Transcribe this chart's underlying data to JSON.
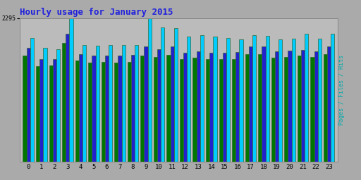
{
  "title": "Hourly usage for January 2015",
  "hours": [
    0,
    1,
    2,
    3,
    4,
    5,
    6,
    7,
    8,
    9,
    10,
    11,
    12,
    13,
    14,
    15,
    16,
    17,
    18,
    19,
    20,
    21,
    22,
    23
  ],
  "pages": [
    1700,
    1530,
    1540,
    1900,
    1620,
    1590,
    1600,
    1590,
    1600,
    1700,
    1680,
    1710,
    1640,
    1660,
    1640,
    1640,
    1640,
    1720,
    1720,
    1660,
    1680,
    1700,
    1670,
    1720
  ],
  "files": [
    1820,
    1640,
    1640,
    2050,
    1720,
    1700,
    1700,
    1700,
    1710,
    1840,
    1800,
    1840,
    1740,
    1760,
    1740,
    1740,
    1750,
    1840,
    1840,
    1760,
    1780,
    1790,
    1770,
    1840
  ],
  "hits": [
    1980,
    1820,
    1800,
    2296,
    1870,
    1850,
    1860,
    1860,
    1870,
    2296,
    2150,
    2140,
    2000,
    2020,
    2000,
    1980,
    1960,
    2020,
    2010,
    1950,
    1970,
    2040,
    1970,
    2050
  ],
  "ylim_max": 2296,
  "bar_color_pages": "#007700",
  "bar_color_files": "#2222cc",
  "bar_color_hits": "#00ccff",
  "background_color": "#aaaaaa",
  "plot_bg_color": "#bbbbbb",
  "title_color": "#2222dd",
  "right_label": "Pages / Files / Hits",
  "right_label_color": "#00aaaa",
  "bar_width": 0.28,
  "bar_edge_color": "#336633",
  "ytick_label": "2295",
  "grid_color": "#999999"
}
